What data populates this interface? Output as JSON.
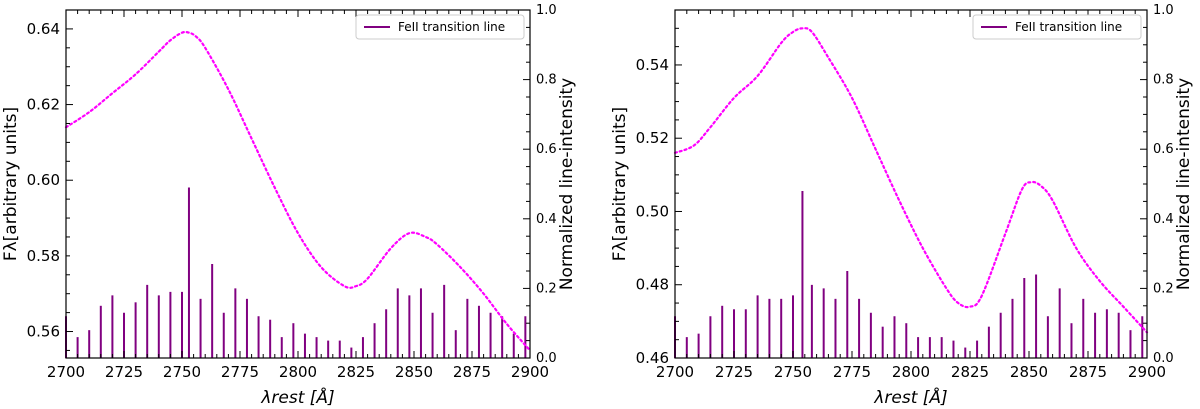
{
  "chart_data": [
    {
      "type": "line",
      "xlabel": "λrest [Å]",
      "ylabel": "Fλ[arbitrary units]",
      "ylabel_right": "Normalized line-intensity",
      "xlim": [
        2700,
        2900
      ],
      "ylim": [
        0.553,
        0.645
      ],
      "ylim_right": [
        0.0,
        1.0
      ],
      "x_ticks": [
        "2700",
        "2725",
        "2750",
        "2775",
        "2800",
        "2825",
        "2850",
        "2875",
        "2900"
      ],
      "y_ticks": [
        "0.56",
        "0.58",
        "0.60",
        "0.62",
        "0.64"
      ],
      "y_ticks_right": [
        "0.0",
        "0.2",
        "0.4",
        "0.6",
        "0.8",
        "1.0"
      ],
      "legend": {
        "label": "FeII transition line",
        "position": "top-right",
        "color": "#800080"
      },
      "series": [
        {
          "style": "dotted",
          "color": "#ff00ff",
          "x": [
            2700,
            2710,
            2720,
            2730,
            2740,
            2745,
            2750,
            2753,
            2756,
            2760,
            2770,
            2780,
            2790,
            2800,
            2810,
            2820,
            2825,
            2830,
            2840,
            2848,
            2855,
            2860,
            2870,
            2880,
            2890,
            2900
          ],
          "y": [
            0.614,
            0.618,
            0.623,
            0.628,
            0.634,
            0.637,
            0.639,
            0.639,
            0.638,
            0.635,
            0.624,
            0.611,
            0.598,
            0.586,
            0.577,
            0.572,
            0.572,
            0.574,
            0.582,
            0.586,
            0.585,
            0.583,
            0.577,
            0.57,
            0.562,
            0.555
          ]
        }
      ],
      "bars": {
        "axis": "right",
        "color": "#800080",
        "x": [
          2700,
          2705,
          2710,
          2715,
          2720,
          2725,
          2730,
          2735,
          2740,
          2745,
          2750,
          2753,
          2758,
          2763,
          2768,
          2773,
          2778,
          2783,
          2788,
          2793,
          2798,
          2803,
          2808,
          2813,
          2818,
          2823,
          2828,
          2833,
          2838,
          2843,
          2848,
          2853,
          2858,
          2863,
          2868,
          2873,
          2878,
          2883,
          2888,
          2893,
          2898
        ],
        "values": [
          0.12,
          0.06,
          0.08,
          0.15,
          0.18,
          0.13,
          0.16,
          0.21,
          0.18,
          0.19,
          0.19,
          0.49,
          0.17,
          0.27,
          0.13,
          0.2,
          0.17,
          0.12,
          0.11,
          0.06,
          0.1,
          0.07,
          0.06,
          0.05,
          0.05,
          0.03,
          0.06,
          0.1,
          0.14,
          0.2,
          0.18,
          0.2,
          0.13,
          0.21,
          0.08,
          0.17,
          0.15,
          0.13,
          0.12,
          0.07,
          0.12
        ]
      }
    },
    {
      "type": "line",
      "xlabel": "λrest [Å]",
      "ylabel": "Fλ[arbitrary units]",
      "ylabel_right": "Normalized line-intensity",
      "xlim": [
        2700,
        2900
      ],
      "ylim": [
        0.46,
        0.555
      ],
      "ylim_right": [
        0.0,
        1.0
      ],
      "x_ticks": [
        "2700",
        "2725",
        "2750",
        "2775",
        "2800",
        "2825",
        "2850",
        "2875",
        "2900"
      ],
      "y_ticks": [
        "0.46",
        "0.48",
        "0.50",
        "0.52",
        "0.54"
      ],
      "y_ticks_right": [
        "0.0",
        "0.2",
        "0.4",
        "0.6",
        "0.8",
        "1.0"
      ],
      "legend": {
        "label": "FeII transition line",
        "position": "top-right",
        "color": "#800080"
      },
      "series": [
        {
          "style": "dotted",
          "color": "#ff00ff",
          "x": [
            2700,
            2708,
            2715,
            2725,
            2735,
            2745,
            2750,
            2754,
            2758,
            2765,
            2775,
            2785,
            2795,
            2805,
            2815,
            2820,
            2825,
            2830,
            2840,
            2847,
            2851,
            2855,
            2860,
            2870,
            2880,
            2890,
            2900
          ],
          "y": [
            0.516,
            0.518,
            0.523,
            0.531,
            0.537,
            0.546,
            0.549,
            0.55,
            0.549,
            0.542,
            0.531,
            0.517,
            0.503,
            0.49,
            0.479,
            0.475,
            0.474,
            0.477,
            0.494,
            0.506,
            0.508,
            0.507,
            0.503,
            0.49,
            0.481,
            0.474,
            0.467
          ]
        }
      ],
      "bars": {
        "axis": "right",
        "color": "#800080",
        "x": [
          2700,
          2705,
          2710,
          2715,
          2720,
          2725,
          2730,
          2735,
          2740,
          2745,
          2750,
          2754,
          2758,
          2763,
          2768,
          2773,
          2778,
          2783,
          2788,
          2793,
          2798,
          2803,
          2808,
          2813,
          2818,
          2823,
          2828,
          2833,
          2838,
          2843,
          2848,
          2853,
          2858,
          2863,
          2868,
          2873,
          2878,
          2883,
          2888,
          2893,
          2898
        ],
        "values": [
          0.12,
          0.06,
          0.07,
          0.12,
          0.15,
          0.14,
          0.14,
          0.18,
          0.17,
          0.17,
          0.18,
          0.48,
          0.21,
          0.2,
          0.17,
          0.25,
          0.17,
          0.13,
          0.09,
          0.12,
          0.1,
          0.06,
          0.06,
          0.06,
          0.05,
          0.03,
          0.05,
          0.09,
          0.13,
          0.17,
          0.23,
          0.24,
          0.12,
          0.2,
          0.1,
          0.17,
          0.13,
          0.14,
          0.13,
          0.08,
          0.12
        ]
      }
    }
  ]
}
